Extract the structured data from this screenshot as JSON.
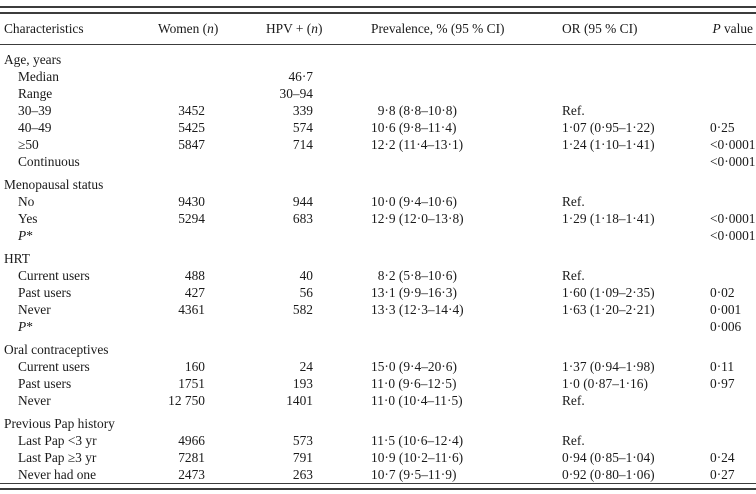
{
  "table": {
    "columns": [
      {
        "key": "label",
        "header": [
          {
            "t": "Characteristics"
          }
        ]
      },
      {
        "key": "women",
        "header": [
          {
            "t": "Women ("
          },
          {
            "t": "n",
            "i": true
          },
          {
            "t": ")"
          }
        ]
      },
      {
        "key": "hpv",
        "header": [
          {
            "t": "HPV + ("
          },
          {
            "t": "n",
            "i": true
          },
          {
            "t": ")"
          }
        ]
      },
      {
        "key": "prev",
        "header": [
          {
            "t": "Prevalence, % (95 % CI)"
          }
        ]
      },
      {
        "key": "or",
        "header": [
          {
            "t": "OR (95 % CI)"
          }
        ]
      },
      {
        "key": "p",
        "header": [
          {
            "t": "P",
            "i": true
          },
          {
            "t": " value"
          }
        ]
      }
    ],
    "rows": [
      {
        "type": "section",
        "label": [
          {
            "t": "Age, years"
          }
        ]
      },
      {
        "type": "item",
        "label": [
          {
            "t": "Median"
          }
        ],
        "women": "",
        "hpv": "46·7",
        "prev": "",
        "or": "",
        "p": ""
      },
      {
        "type": "item",
        "label": [
          {
            "t": "Range"
          }
        ],
        "women": "",
        "hpv": "30–94",
        "prev": "",
        "or": "",
        "p": ""
      },
      {
        "type": "item",
        "label": [
          {
            "t": "30–39"
          }
        ],
        "women": "3452",
        "hpv": "339",
        "prev": " 9·8 (8·8–10·8)",
        "or": "Ref.",
        "p": ""
      },
      {
        "type": "item",
        "label": [
          {
            "t": "40–49"
          }
        ],
        "women": "5425",
        "hpv": "574",
        "prev": "10·6 (9·8–11·4)",
        "or": "1·07 (0·95–1·22)",
        "p": "0·25"
      },
      {
        "type": "item",
        "label": [
          {
            "t": "≥50"
          }
        ],
        "women": "5847",
        "hpv": "714",
        "prev": "12·2 (11·4–13·1)",
        "or": "1·24 (1·10–1·41)",
        "p": "<0·0001"
      },
      {
        "type": "item",
        "label": [
          {
            "t": "Continuous"
          }
        ],
        "women": "",
        "hpv": "",
        "prev": "",
        "or": "",
        "p": "<0·0001"
      },
      {
        "type": "section",
        "label": [
          {
            "t": "Menopausal status"
          }
        ]
      },
      {
        "type": "item",
        "label": [
          {
            "t": "No"
          }
        ],
        "women": "9430",
        "hpv": "944",
        "prev": "10·0 (9·4–10·6)",
        "or": "Ref.",
        "p": ""
      },
      {
        "type": "item",
        "label": [
          {
            "t": "Yes"
          }
        ],
        "women": "5294",
        "hpv": "683",
        "prev": "12·9 (12·0–13·8)",
        "or": "1·29 (1·18–1·41)",
        "p": "<0·0001"
      },
      {
        "type": "item",
        "label": [
          {
            "t": "P",
            "i": true
          },
          {
            "t": "*"
          }
        ],
        "women": "",
        "hpv": "",
        "prev": "",
        "or": "",
        "p": "<0·0001"
      },
      {
        "type": "section",
        "label": [
          {
            "t": "HRT"
          }
        ]
      },
      {
        "type": "item",
        "label": [
          {
            "t": "Current users"
          }
        ],
        "women": "488",
        "hpv": "40",
        "prev": " 8·2 (5·8–10·6)",
        "or": "Ref.",
        "p": ""
      },
      {
        "type": "item",
        "label": [
          {
            "t": "Past users"
          }
        ],
        "women": "427",
        "hpv": "56",
        "prev": "13·1 (9·9–16·3)",
        "or": "1·60 (1·09–2·35)",
        "p": "0·02"
      },
      {
        "type": "item",
        "label": [
          {
            "t": "Never"
          }
        ],
        "women": "4361",
        "hpv": "582",
        "prev": "13·3 (12·3–14·4)",
        "or": "1·63 (1·20–2·21)",
        "p": "0·001"
      },
      {
        "type": "item",
        "label": [
          {
            "t": "P",
            "i": true
          },
          {
            "t": "*"
          }
        ],
        "women": "",
        "hpv": "",
        "prev": "",
        "or": "",
        "p": "0·006"
      },
      {
        "type": "section",
        "label": [
          {
            "t": "Oral contraceptives"
          }
        ]
      },
      {
        "type": "item",
        "label": [
          {
            "t": "Current users"
          }
        ],
        "women": "160",
        "hpv": "24",
        "prev": "15·0 (9·4–20·6)",
        "or": "1·37 (0·94–1·98)",
        "p": "0·11"
      },
      {
        "type": "item",
        "label": [
          {
            "t": "Past users"
          }
        ],
        "women": "1751",
        "hpv": "193",
        "prev": "11·0 (9·6–12·5)",
        "or": "1·0 (0·87–1·16)",
        "p": "0·97"
      },
      {
        "type": "item",
        "label": [
          {
            "t": "Never"
          }
        ],
        "women": "12 750",
        "hpv": "1401",
        "prev": "11·0 (10·4–11·5)",
        "or": "Ref.",
        "p": ""
      },
      {
        "type": "section",
        "label": [
          {
            "t": "Previous Pap history"
          }
        ]
      },
      {
        "type": "item",
        "label": [
          {
            "t": "Last Pap <3 yr"
          }
        ],
        "women": "4966",
        "hpv": "573",
        "prev": "11·5 (10·6–12·4)",
        "or": "Ref.",
        "p": ""
      },
      {
        "type": "item",
        "label": [
          {
            "t": "Last Pap ≥3 yr"
          }
        ],
        "women": "7281",
        "hpv": "791",
        "prev": "10·9 (10·2–11·6)",
        "or": "0·94 (0·85–1·04)",
        "p": "0·24"
      },
      {
        "type": "item",
        "label": [
          {
            "t": "Never had one"
          }
        ],
        "women": "2473",
        "hpv": "263",
        "prev": "10·7 (9·5–11·9)",
        "or": "0·92 (0·80–1·06)",
        "p": "0·27"
      }
    ]
  }
}
